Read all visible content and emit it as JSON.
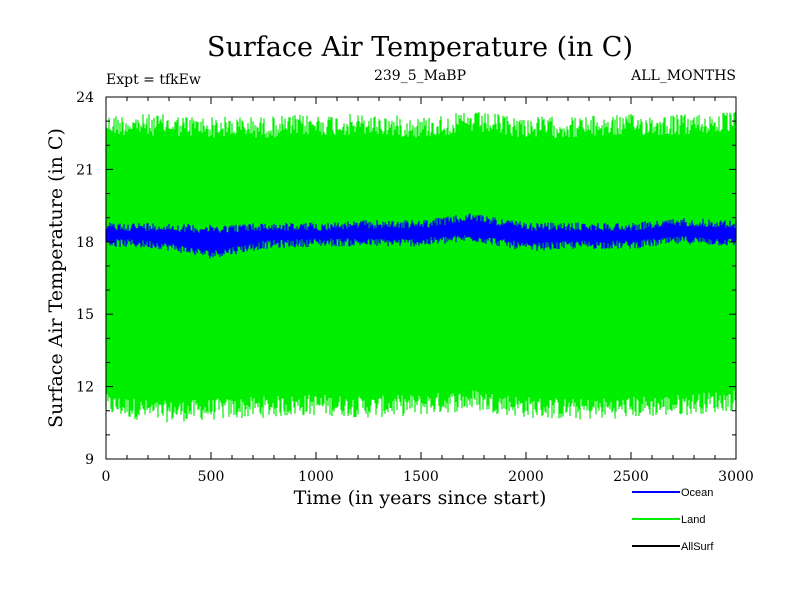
{
  "chart_data": {
    "type": "line",
    "title": "Surface Air Temperature (in C)",
    "header_left": "Expt = tfkEw",
    "header_center": "239_5_MaBP",
    "header_right": "ALL_MONTHS",
    "xlabel": "Time (in years since start)",
    "ylabel": "Surface Air Temperature (in C)",
    "xlim": [
      0,
      3000
    ],
    "ylim": [
      9,
      24
    ],
    "xticks": [
      0,
      500,
      1000,
      1500,
      2000,
      2500,
      3000
    ],
    "yticks": [
      9,
      12,
      15,
      18,
      21,
      24
    ],
    "grid": false,
    "legend_position": "bottom-right",
    "series": [
      {
        "name": "Land",
        "color": "#00ee00",
        "x": [
          0,
          250,
          500,
          750,
          1000,
          1250,
          1500,
          1750,
          2000,
          2250,
          2500,
          2750,
          3000
        ],
        "upper": [
          23.3,
          23.3,
          23.2,
          23.2,
          23.3,
          23.3,
          23.2,
          23.4,
          23.2,
          23.2,
          23.3,
          23.3,
          23.4
        ],
        "lower": [
          10.8,
          10.5,
          10.6,
          10.7,
          10.8,
          10.7,
          10.8,
          11.0,
          10.7,
          10.6,
          10.7,
          10.8,
          11.0
        ]
      },
      {
        "name": "Ocean",
        "color": "#0000ff",
        "x": [
          0,
          250,
          500,
          750,
          1000,
          1250,
          1500,
          1750,
          2000,
          2250,
          2500,
          2750,
          3000
        ],
        "upper": [
          18.8,
          18.8,
          18.7,
          18.8,
          18.8,
          18.9,
          18.9,
          19.2,
          18.8,
          18.8,
          18.8,
          19.0,
          18.9
        ],
        "lower": [
          17.8,
          17.7,
          17.3,
          17.7,
          17.8,
          17.8,
          17.8,
          18.0,
          17.6,
          17.7,
          17.7,
          17.9,
          17.8
        ]
      },
      {
        "name": "AllSurf",
        "color": "#000000"
      }
    ]
  }
}
